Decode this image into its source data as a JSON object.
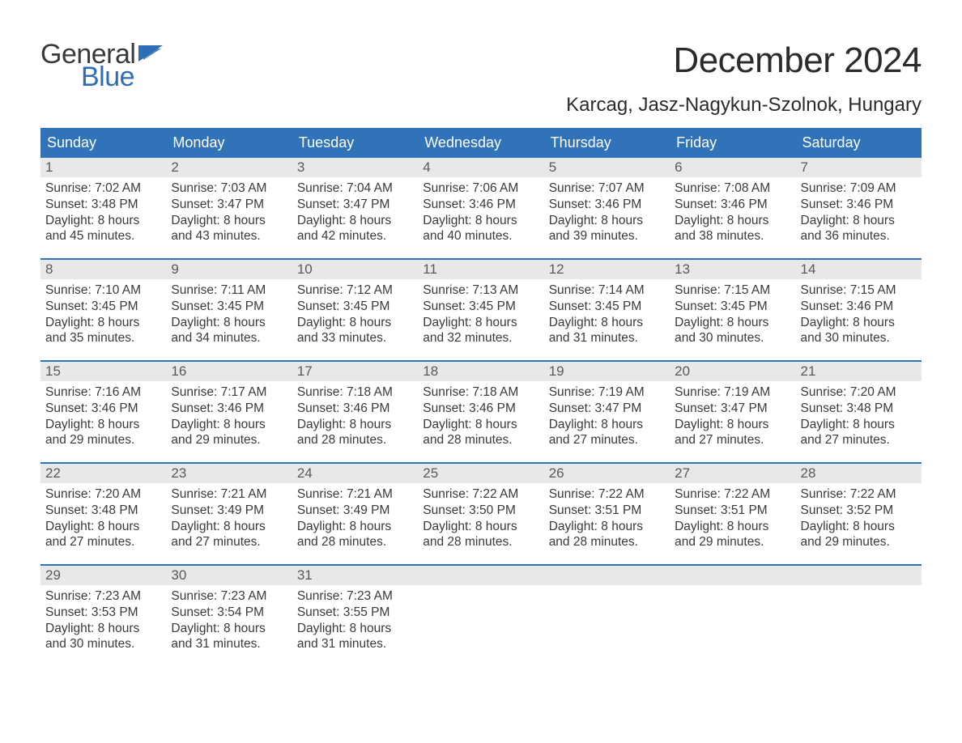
{
  "logo": {
    "text_general": "General",
    "text_blue": "Blue",
    "flag_color": "#2f6eb5"
  },
  "title": "December 2024",
  "location": "Karcag, Jasz-Nagykun-Szolnok, Hungary",
  "colors": {
    "header_bg": "#3173b8",
    "header_text": "#ffffff",
    "strip_bg": "#e8e8e8",
    "text": "#3a3a3a",
    "accent": "#2f6eb5",
    "page_bg": "#ffffff"
  },
  "weekdays": [
    "Sunday",
    "Monday",
    "Tuesday",
    "Wednesday",
    "Thursday",
    "Friday",
    "Saturday"
  ],
  "weeks": [
    [
      {
        "n": "1",
        "sr": "Sunrise: 7:02 AM",
        "ss": "Sunset: 3:48 PM",
        "d1": "Daylight: 8 hours",
        "d2": "and 45 minutes."
      },
      {
        "n": "2",
        "sr": "Sunrise: 7:03 AM",
        "ss": "Sunset: 3:47 PM",
        "d1": "Daylight: 8 hours",
        "d2": "and 43 minutes."
      },
      {
        "n": "3",
        "sr": "Sunrise: 7:04 AM",
        "ss": "Sunset: 3:47 PM",
        "d1": "Daylight: 8 hours",
        "d2": "and 42 minutes."
      },
      {
        "n": "4",
        "sr": "Sunrise: 7:06 AM",
        "ss": "Sunset: 3:46 PM",
        "d1": "Daylight: 8 hours",
        "d2": "and 40 minutes."
      },
      {
        "n": "5",
        "sr": "Sunrise: 7:07 AM",
        "ss": "Sunset: 3:46 PM",
        "d1": "Daylight: 8 hours",
        "d2": "and 39 minutes."
      },
      {
        "n": "6",
        "sr": "Sunrise: 7:08 AM",
        "ss": "Sunset: 3:46 PM",
        "d1": "Daylight: 8 hours",
        "d2": "and 38 minutes."
      },
      {
        "n": "7",
        "sr": "Sunrise: 7:09 AM",
        "ss": "Sunset: 3:46 PM",
        "d1": "Daylight: 8 hours",
        "d2": "and 36 minutes."
      }
    ],
    [
      {
        "n": "8",
        "sr": "Sunrise: 7:10 AM",
        "ss": "Sunset: 3:45 PM",
        "d1": "Daylight: 8 hours",
        "d2": "and 35 minutes."
      },
      {
        "n": "9",
        "sr": "Sunrise: 7:11 AM",
        "ss": "Sunset: 3:45 PM",
        "d1": "Daylight: 8 hours",
        "d2": "and 34 minutes."
      },
      {
        "n": "10",
        "sr": "Sunrise: 7:12 AM",
        "ss": "Sunset: 3:45 PM",
        "d1": "Daylight: 8 hours",
        "d2": "and 33 minutes."
      },
      {
        "n": "11",
        "sr": "Sunrise: 7:13 AM",
        "ss": "Sunset: 3:45 PM",
        "d1": "Daylight: 8 hours",
        "d2": "and 32 minutes."
      },
      {
        "n": "12",
        "sr": "Sunrise: 7:14 AM",
        "ss": "Sunset: 3:45 PM",
        "d1": "Daylight: 8 hours",
        "d2": "and 31 minutes."
      },
      {
        "n": "13",
        "sr": "Sunrise: 7:15 AM",
        "ss": "Sunset: 3:45 PM",
        "d1": "Daylight: 8 hours",
        "d2": "and 30 minutes."
      },
      {
        "n": "14",
        "sr": "Sunrise: 7:15 AM",
        "ss": "Sunset: 3:46 PM",
        "d1": "Daylight: 8 hours",
        "d2": "and 30 minutes."
      }
    ],
    [
      {
        "n": "15",
        "sr": "Sunrise: 7:16 AM",
        "ss": "Sunset: 3:46 PM",
        "d1": "Daylight: 8 hours",
        "d2": "and 29 minutes."
      },
      {
        "n": "16",
        "sr": "Sunrise: 7:17 AM",
        "ss": "Sunset: 3:46 PM",
        "d1": "Daylight: 8 hours",
        "d2": "and 29 minutes."
      },
      {
        "n": "17",
        "sr": "Sunrise: 7:18 AM",
        "ss": "Sunset: 3:46 PM",
        "d1": "Daylight: 8 hours",
        "d2": "and 28 minutes."
      },
      {
        "n": "18",
        "sr": "Sunrise: 7:18 AM",
        "ss": "Sunset: 3:46 PM",
        "d1": "Daylight: 8 hours",
        "d2": "and 28 minutes."
      },
      {
        "n": "19",
        "sr": "Sunrise: 7:19 AM",
        "ss": "Sunset: 3:47 PM",
        "d1": "Daylight: 8 hours",
        "d2": "and 27 minutes."
      },
      {
        "n": "20",
        "sr": "Sunrise: 7:19 AM",
        "ss": "Sunset: 3:47 PM",
        "d1": "Daylight: 8 hours",
        "d2": "and 27 minutes."
      },
      {
        "n": "21",
        "sr": "Sunrise: 7:20 AM",
        "ss": "Sunset: 3:48 PM",
        "d1": "Daylight: 8 hours",
        "d2": "and 27 minutes."
      }
    ],
    [
      {
        "n": "22",
        "sr": "Sunrise: 7:20 AM",
        "ss": "Sunset: 3:48 PM",
        "d1": "Daylight: 8 hours",
        "d2": "and 27 minutes."
      },
      {
        "n": "23",
        "sr": "Sunrise: 7:21 AM",
        "ss": "Sunset: 3:49 PM",
        "d1": "Daylight: 8 hours",
        "d2": "and 27 minutes."
      },
      {
        "n": "24",
        "sr": "Sunrise: 7:21 AM",
        "ss": "Sunset: 3:49 PM",
        "d1": "Daylight: 8 hours",
        "d2": "and 28 minutes."
      },
      {
        "n": "25",
        "sr": "Sunrise: 7:22 AM",
        "ss": "Sunset: 3:50 PM",
        "d1": "Daylight: 8 hours",
        "d2": "and 28 minutes."
      },
      {
        "n": "26",
        "sr": "Sunrise: 7:22 AM",
        "ss": "Sunset: 3:51 PM",
        "d1": "Daylight: 8 hours",
        "d2": "and 28 minutes."
      },
      {
        "n": "27",
        "sr": "Sunrise: 7:22 AM",
        "ss": "Sunset: 3:51 PM",
        "d1": "Daylight: 8 hours",
        "d2": "and 29 minutes."
      },
      {
        "n": "28",
        "sr": "Sunrise: 7:22 AM",
        "ss": "Sunset: 3:52 PM",
        "d1": "Daylight: 8 hours",
        "d2": "and 29 minutes."
      }
    ],
    [
      {
        "n": "29",
        "sr": "Sunrise: 7:23 AM",
        "ss": "Sunset: 3:53 PM",
        "d1": "Daylight: 8 hours",
        "d2": "and 30 minutes."
      },
      {
        "n": "30",
        "sr": "Sunrise: 7:23 AM",
        "ss": "Sunset: 3:54 PM",
        "d1": "Daylight: 8 hours",
        "d2": "and 31 minutes."
      },
      {
        "n": "31",
        "sr": "Sunrise: 7:23 AM",
        "ss": "Sunset: 3:55 PM",
        "d1": "Daylight: 8 hours",
        "d2": "and 31 minutes."
      },
      {
        "n": "",
        "sr": "",
        "ss": "",
        "d1": "",
        "d2": "",
        "empty": true
      },
      {
        "n": "",
        "sr": "",
        "ss": "",
        "d1": "",
        "d2": "",
        "empty": true
      },
      {
        "n": "",
        "sr": "",
        "ss": "",
        "d1": "",
        "d2": "",
        "empty": true
      },
      {
        "n": "",
        "sr": "",
        "ss": "",
        "d1": "",
        "d2": "",
        "empty": true
      }
    ]
  ]
}
